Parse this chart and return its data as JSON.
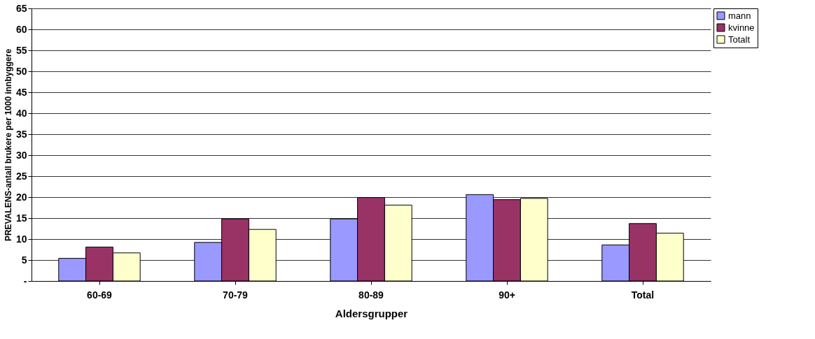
{
  "chart_data": {
    "type": "bar",
    "xlabel": "Aldersgrupper",
    "ylabel": "PREVALENS-antall brukere per 1000 innbyggere",
    "categories": [
      "60-69",
      "70-79",
      "80-89",
      "90+",
      "Total"
    ],
    "series": [
      {
        "name": "mann",
        "color": "#9999ff",
        "values": [
          5.4,
          9.2,
          14.8,
          20.6,
          8.6
        ]
      },
      {
        "name": "kvinne",
        "color": "#993366",
        "values": [
          8.1,
          14.8,
          19.9,
          19.4,
          13.7
        ]
      },
      {
        "name": "Totalt",
        "color": "#ffffcc",
        "values": [
          6.7,
          12.3,
          18.1,
          19.7,
          11.4
        ]
      }
    ],
    "ylim": [
      0,
      65
    ],
    "yticks": [
      {
        "value": 0,
        "label": "-"
      },
      5,
      10,
      15,
      20,
      25,
      30,
      35,
      40,
      45,
      50,
      55,
      60,
      65
    ],
    "grid": "y",
    "legend": "right"
  }
}
